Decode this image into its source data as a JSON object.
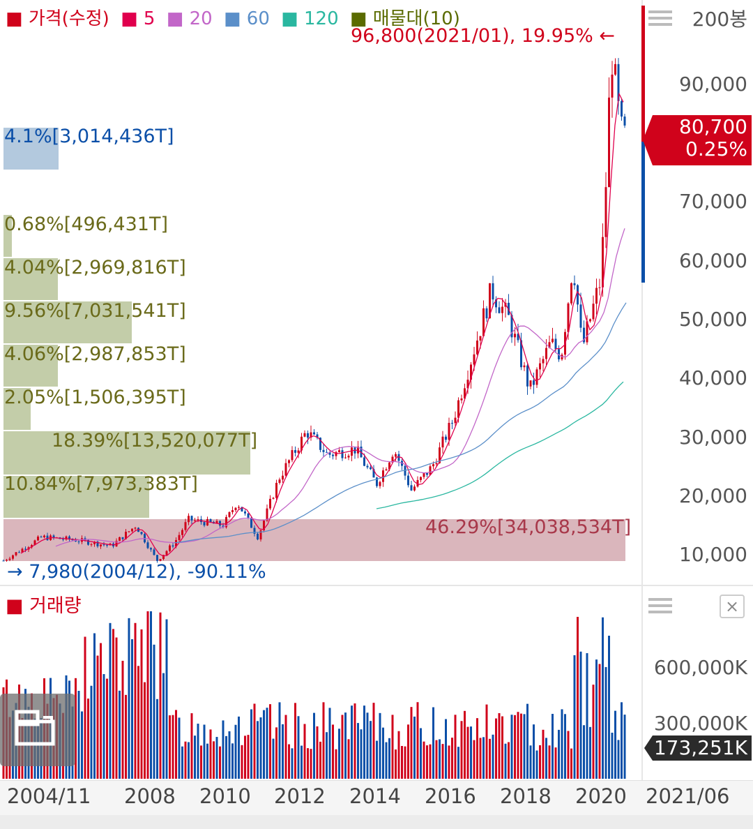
{
  "legend": {
    "price": "가격(수정)",
    "ma5": "5",
    "ma20": "20",
    "ma60": "60",
    "ma120": "120",
    "volume_profile": "매물대(10)"
  },
  "period_label": "200봉",
  "y_axis_ticks": [
    "90,000",
    "70,000",
    "60,000",
    "50,000",
    "40,000",
    "30,000",
    "20,000",
    "10,000"
  ],
  "high_marker": "96,800(2021/01), 19.95%",
  "high_arrow": "←",
  "low_marker": "7,980(2004/12), -90.11%",
  "low_arrow": "→",
  "current_price": "80,700",
  "current_change": "0.25%",
  "volume_profile_bars": [
    {
      "label": "4.1%[3,014,436T]",
      "color": "#a6bfd8"
    },
    {
      "label": "0.68%[496,431T]"
    },
    {
      "label": "4.04%[2,969,816T]"
    },
    {
      "label": "9.56%[7,031,541T]"
    },
    {
      "label": "4.06%[2,987,853T]"
    },
    {
      "label": "2.05%[1,506,395T]"
    },
    {
      "label": "18.39%[13,520,077T]"
    },
    {
      "label": "10.84%[7,973,383T]"
    },
    {
      "label": "46.29%[34,038,534T]",
      "color": "#d4a9b0"
    }
  ],
  "volume_title": "거래량",
  "volume_ticks": [
    "600,000K",
    "300,000K"
  ],
  "current_volume": "173,251K",
  "close_button": "×",
  "x_axis_labels": [
    "2004/11",
    "2008",
    "2010",
    "2012",
    "2014",
    "2016",
    "2018",
    "2020",
    "2021/06"
  ],
  "colors": {
    "up": "#d0021b",
    "down": "#0b4fa8",
    "ma5": "#e0004d",
    "ma20": "#c266c8",
    "ma60": "#5b8fc9",
    "ma120": "#2ab7a0",
    "vp": "#5a6b00"
  }
}
